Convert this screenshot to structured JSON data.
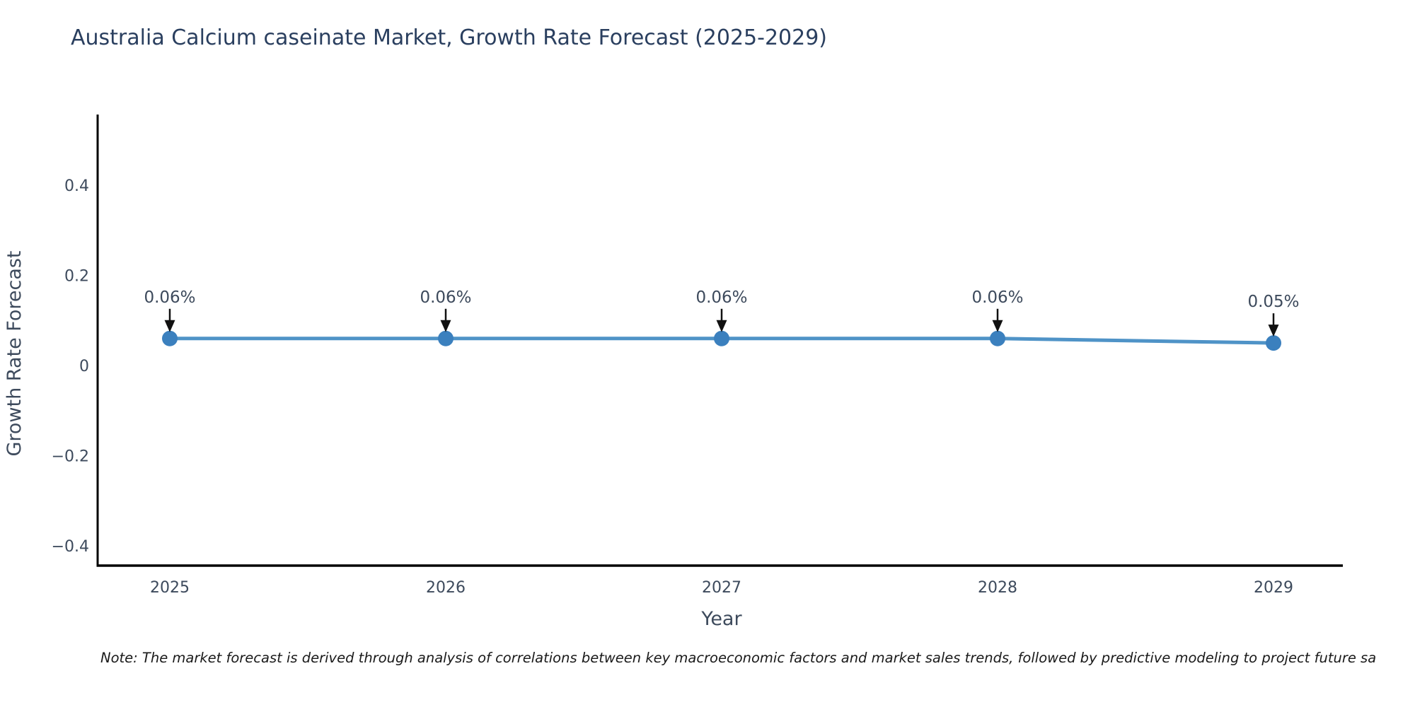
{
  "chart_data": {
    "type": "line",
    "title": "Australia Calcium caseinate Market, Growth Rate Forecast (2025-2029)",
    "xlabel": "Year",
    "ylabel": "Growth Rate Forecast",
    "x": [
      2025,
      2026,
      2027,
      2028,
      2029
    ],
    "x_tick_labels": [
      "2025",
      "2026",
      "2027",
      "2028",
      "2029"
    ],
    "y": [
      0.06,
      0.06,
      0.06,
      0.06,
      0.05
    ],
    "point_labels": [
      "0.06%",
      "0.06%",
      "0.06%",
      "0.06%",
      "0.05%"
    ],
    "y_ticks": [
      0.4,
      0.2,
      0,
      -0.2,
      -0.4
    ],
    "y_tick_labels": [
      "0.4",
      "0.2",
      "0",
      "−0.2",
      "−0.4"
    ],
    "ylim": [
      -0.444,
      0.557
    ],
    "grid": false,
    "legend": false,
    "colors": {
      "line": "#4f93c7",
      "marker": "#3b80be",
      "axis": "#000000",
      "title_text": "#2a3f5f",
      "tick_text": "#3d4a5c",
      "annotation_text": "#3d4a5c",
      "annotation_arrow": "#111111",
      "background": "#ffffff"
    }
  },
  "note": {
    "text": "Note: The market forecast is derived through analysis of correlations between key macroeconomic factors and market sales trends, followed by predictive modeling to project future sa"
  }
}
